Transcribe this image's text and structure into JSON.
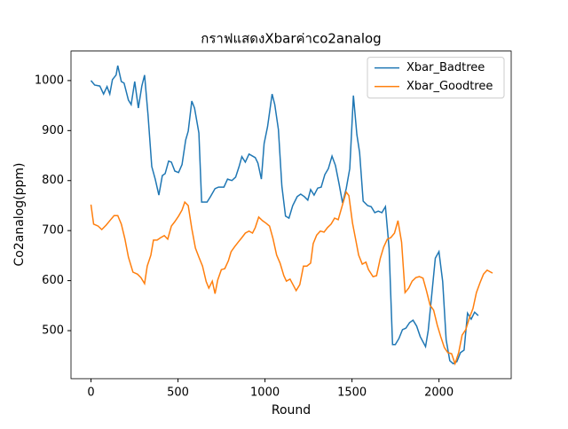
{
  "chart_data": {
    "type": "line",
    "title": "กราฟแสดงXbarค่าco2analog",
    "x_label": "Round",
    "y_label": "Co2analog(ppm)",
    "xlim": [
      -115,
      2415
    ],
    "ylim": [
      404,
      1059
    ],
    "xticks": [
      0,
      500,
      1000,
      1500,
      2000
    ],
    "yticks": [
      500,
      600,
      700,
      800,
      900,
      1000
    ],
    "legend_position": "upper right",
    "series": [
      {
        "name": "Xbar_Badtree",
        "color": "#1f77b4",
        "x": [
          0,
          21,
          51,
          72,
          92,
          108,
          123,
          144,
          154,
          174,
          190,
          215,
          231,
          251,
          272,
          292,
          308,
          328,
          349,
          369,
          390,
          410,
          426,
          446,
          462,
          482,
          503,
          523,
          544,
          559,
          579,
          595,
          620,
          636,
          667,
          687,
          713,
          733,
          764,
          785,
          810,
          831,
          851,
          867,
          887,
          908,
          944,
          959,
          979,
          995,
          1015,
          1041,
          1056,
          1077,
          1097,
          1118,
          1138,
          1159,
          1185,
          1205,
          1226,
          1246,
          1262,
          1282,
          1303,
          1323,
          1344,
          1364,
          1385,
          1405,
          1426,
          1446,
          1467,
          1487,
          1508,
          1528,
          1544,
          1564,
          1590,
          1610,
          1631,
          1651,
          1672,
          1692,
          1713,
          1733,
          1749,
          1769,
          1790,
          1810,
          1831,
          1851,
          1872,
          1892,
          1923,
          1938,
          1959,
          1979,
          2000,
          2021,
          2041,
          2062,
          2082,
          2103,
          2123,
          2144,
          2164,
          2185,
          2205,
          2226
        ],
        "values": [
          1000,
          991,
          989,
          973,
          988,
          973,
          1002,
          1011,
          1030,
          998,
          995,
          961,
          952,
          998,
          945,
          989,
          1011,
          931,
          828,
          803,
          771,
          810,
          814,
          839,
          837,
          819,
          816,
          832,
          881,
          899,
          959,
          945,
          895,
          757,
          757,
          768,
          784,
          787,
          787,
          803,
          800,
          807,
          828,
          848,
          837,
          853,
          846,
          835,
          803,
          874,
          908,
          973,
          952,
          902,
          789,
          729,
          725,
          750,
          768,
          773,
          768,
          761,
          782,
          771,
          785,
          787,
          812,
          824,
          849,
          830,
          793,
          755,
          784,
          824,
          970,
          892,
          856,
          759,
          750,
          748,
          736,
          739,
          736,
          748,
          665,
          472,
          472,
          484,
          502,
          505,
          516,
          521,
          509,
          488,
          468,
          500,
          574,
          645,
          658,
          598,
          482,
          440,
          434,
          438,
          456,
          461,
          535,
          523,
          537,
          530
        ]
      },
      {
        "name": "Xbar_Goodtree",
        "color": "#ff7f0e",
        "x": [
          0,
          15,
          41,
          62,
          87,
          113,
          133,
          154,
          174,
          195,
          215,
          241,
          267,
          287,
          308,
          323,
          344,
          359,
          380,
          400,
          421,
          441,
          462,
          482,
          503,
          523,
          539,
          559,
          579,
          600,
          620,
          641,
          662,
          677,
          697,
          713,
          728,
          749,
          769,
          790,
          805,
          826,
          846,
          867,
          887,
          908,
          928,
          944,
          964,
          985,
          1005,
          1026,
          1046,
          1067,
          1087,
          1108,
          1123,
          1144,
          1164,
          1179,
          1200,
          1221,
          1241,
          1262,
          1277,
          1297,
          1318,
          1339,
          1359,
          1380,
          1400,
          1421,
          1441,
          1467,
          1482,
          1503,
          1523,
          1538,
          1559,
          1580,
          1595,
          1621,
          1641,
          1662,
          1682,
          1703,
          1723,
          1744,
          1764,
          1785,
          1805,
          1826,
          1846,
          1867,
          1887,
          1908,
          1928,
          1949,
          1969,
          1990,
          2010,
          2031,
          2051,
          2072,
          2092,
          2113,
          2133,
          2154,
          2174,
          2195,
          2215,
          2236,
          2256,
          2277,
          2308
        ],
        "values": [
          752,
          713,
          709,
          702,
          711,
          722,
          730,
          730,
          713,
          683,
          647,
          617,
          613,
          606,
          594,
          629,
          651,
          681,
          681,
          686,
          690,
          683,
          709,
          718,
          729,
          741,
          757,
          750,
          704,
          665,
          647,
          629,
          598,
          585,
          599,
          574,
          601,
          622,
          624,
          640,
          658,
          668,
          677,
          686,
          695,
          699,
          695,
          706,
          727,
          720,
          715,
          709,
          684,
          651,
          635,
          610,
          599,
          603,
          590,
          580,
          592,
          629,
          629,
          635,
          674,
          691,
          699,
          697,
          706,
          713,
          725,
          722,
          746,
          777,
          770,
          715,
          679,
          651,
          633,
          637,
          622,
          608,
          610,
          644,
          667,
          683,
          686,
          695,
          720,
          677,
          576,
          585,
          599,
          606,
          608,
          605,
          580,
          551,
          541,
          511,
          488,
          466,
          456,
          454,
          434,
          456,
          491,
          502,
          525,
          544,
          576,
          596,
          613,
          621,
          615
        ]
      }
    ]
  }
}
